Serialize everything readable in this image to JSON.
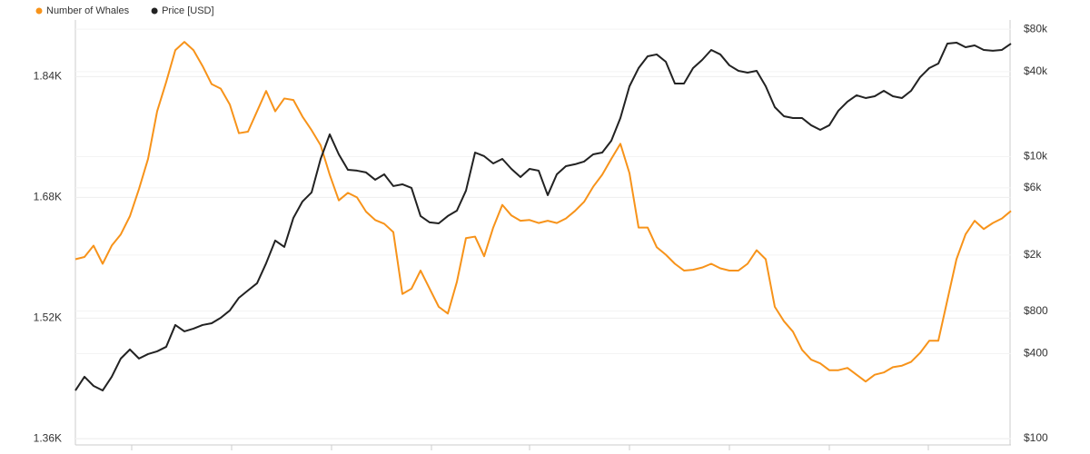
{
  "chart_data": {
    "type": "line",
    "categories": [
      null,
      null,
      null,
      null,
      null,
      null,
      null,
      null,
      null,
      null,
      null,
      null,
      null,
      null,
      null,
      null,
      null,
      null,
      null,
      null,
      null,
      null,
      null,
      null,
      null,
      null,
      null,
      null,
      null,
      null,
      null,
      null,
      null,
      null,
      null,
      null,
      null,
      null,
      null,
      null,
      null,
      null,
      null,
      null,
      null,
      null,
      null,
      null,
      null,
      null,
      null,
      null,
      null,
      null,
      null,
      null,
      null,
      null,
      null,
      null,
      null,
      null,
      null,
      null,
      null,
      null,
      null,
      null,
      null,
      null,
      null,
      null,
      null,
      null,
      null,
      null,
      null,
      null,
      null,
      null,
      null,
      null,
      null,
      null,
      null,
      null,
      null,
      null,
      null,
      null,
      null,
      null,
      null,
      null,
      null,
      null,
      null,
      null,
      null,
      null,
      null,
      null,
      null,
      null
    ],
    "series": [
      {
        "name": "Number of Whales",
        "color": "#f7931a",
        "values": [
          1598,
          1601,
          1616,
          1592,
          1616,
          1631,
          1655,
          1691,
          1731,
          1794,
          1833,
          1875,
          1886,
          1875,
          1854,
          1830,
          1824,
          1803,
          1765,
          1767,
          1794,
          1821,
          1794,
          1811,
          1809,
          1787,
          1769,
          1749,
          1710,
          1676,
          1686,
          1680,
          1661,
          1650,
          1645,
          1634,
          1552,
          1559,
          1583,
          1559,
          1535,
          1526,
          1568,
          1626,
          1628,
          1602,
          1640,
          1670,
          1656,
          1649,
          1650,
          1646,
          1649,
          1646,
          1652,
          1662,
          1674,
          1694,
          1710,
          1731,
          1751,
          1712,
          1640,
          1640,
          1614,
          1604,
          1592,
          1583,
          1584,
          1587,
          1592,
          1586,
          1583,
          1583,
          1592,
          1610,
          1598,
          1535,
          1516,
          1502,
          1478,
          1465,
          1460,
          1451,
          1451,
          1454,
          1445,
          1436,
          1445,
          1448,
          1455,
          1457,
          1462,
          1474,
          1490,
          1490,
          1544,
          1598,
          1631,
          1649,
          1638,
          1646,
          1652,
          1662
        ]
      },
      {
        "name": "Price [USD]",
        "color": "#222222",
        "axis": "y2",
        "values": [
          219,
          274,
          236,
          219,
          274,
          369,
          428,
          369,
          397,
          415,
          447,
          638,
          575,
          601,
          638,
          657,
          718,
          809,
          995,
          1122,
          1262,
          1750,
          2535,
          2283,
          3670,
          4797,
          5559,
          9618,
          14360,
          10360,
          8054,
          7941,
          7710,
          6842,
          7478,
          6168,
          6353,
          5988,
          3783,
          3410,
          3357,
          3783,
          4132,
          5728,
          10670,
          10060,
          8933,
          9618,
          8170,
          7147,
          8170,
          7941,
          5318,
          7478,
          8545,
          8810,
          9204,
          10360,
          10670,
          12940,
          18750,
          31500,
          42370,
          51400,
          52970,
          46990,
          32950,
          32950,
          42370,
          48420,
          57020,
          52970,
          44340,
          40540,
          39340,
          40540,
          31500,
          22390,
          19320,
          18750,
          18750,
          16660,
          15460,
          16660,
          21130,
          24490,
          27170,
          25990,
          26760,
          29240,
          26760,
          25990,
          29240,
          36540,
          42370,
          45610,
          63240,
          64240,
          59590,
          61380,
          57020,
          56230,
          57020,
          63240
        ]
      }
    ],
    "ylim": [
      1352,
      1915
    ],
    "yticks": [
      {
        "value": 1360,
        "label": "1.36K"
      },
      {
        "value": 1520,
        "label": "1.52K"
      },
      {
        "value": 1680,
        "label": "1.68K"
      },
      {
        "value": 1840,
        "label": "1.84K"
      }
    ],
    "y2lim": [
      90,
      93000
    ],
    "y2scale": "log",
    "y2ticks": [
      {
        "value": 100,
        "label": "$100"
      },
      {
        "value": 400,
        "label": "$400"
      },
      {
        "value": 800,
        "label": "$800"
      },
      {
        "value": 2000,
        "label": "$2k"
      },
      {
        "value": 6000,
        "label": "$6k"
      },
      {
        "value": 10000,
        "label": "$10k"
      },
      {
        "value": 40000,
        "label": "$40k"
      },
      {
        "value": 80000,
        "label": "$80k"
      }
    ],
    "grid": true
  }
}
